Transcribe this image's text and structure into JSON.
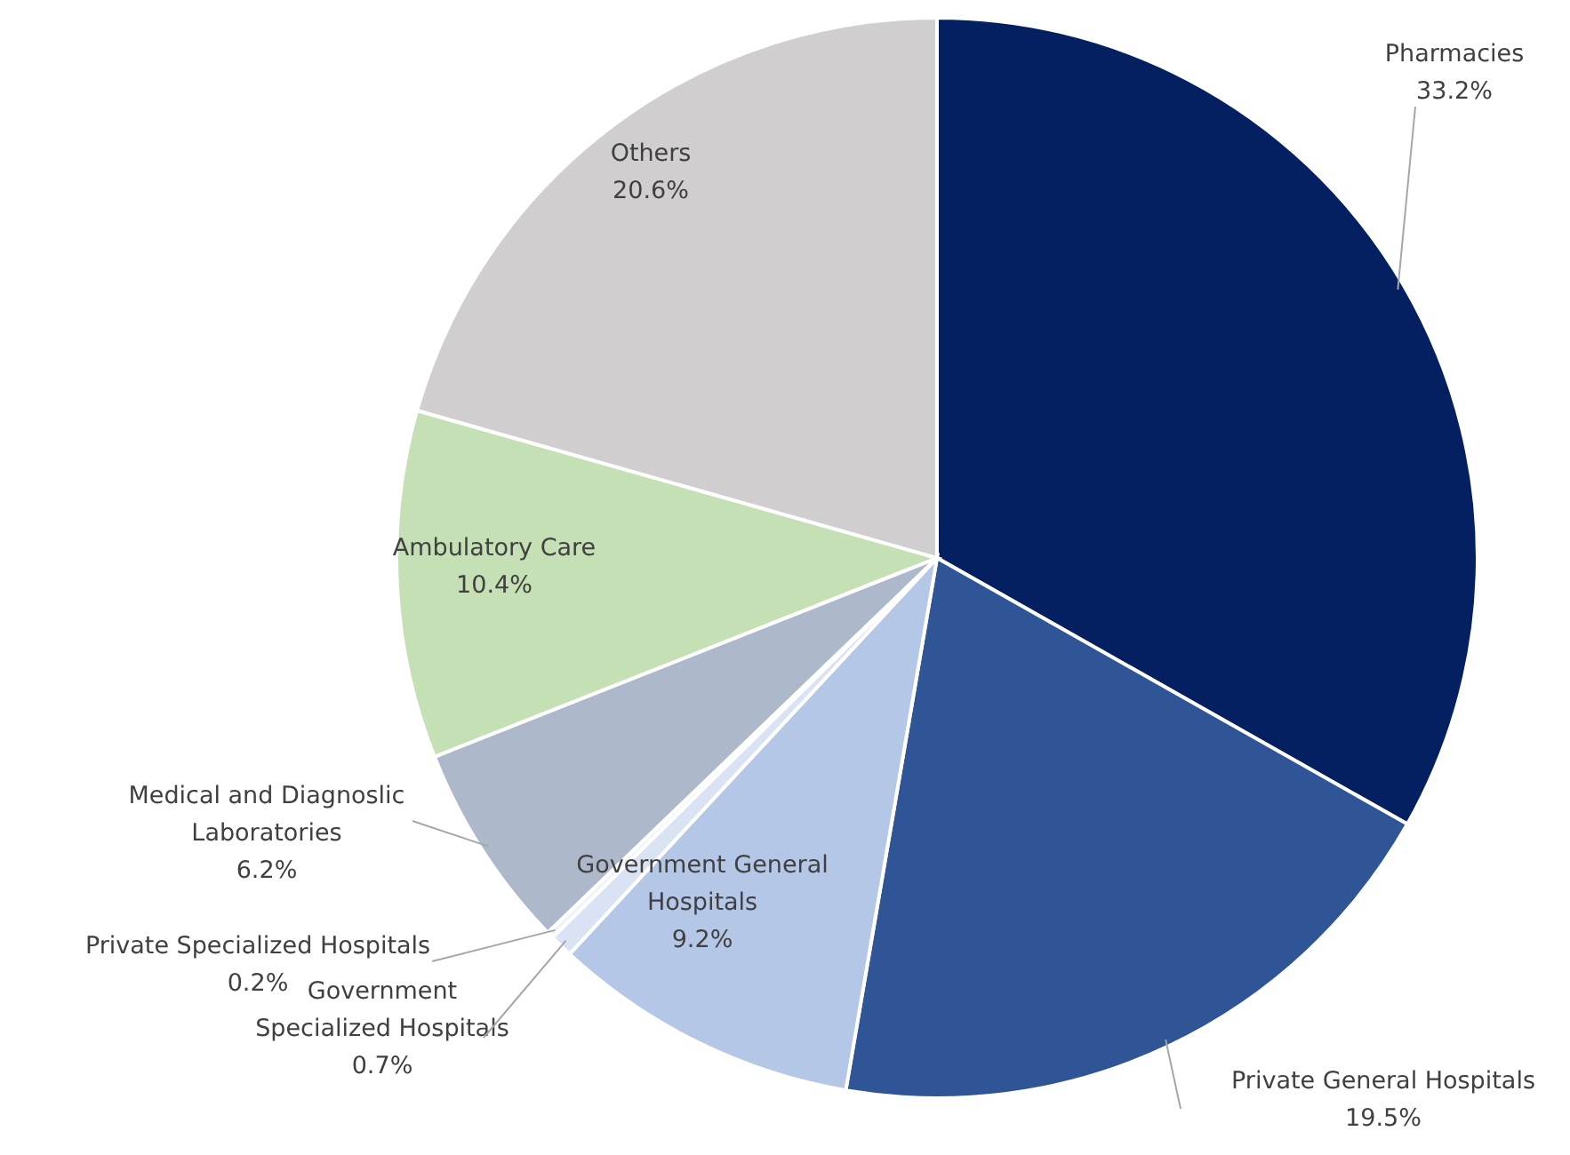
{
  "chart_data": {
    "type": "pie",
    "categories": [
      "Pharmacies",
      "Private General Hospitals",
      "Government General Hospitals",
      "Government Specialized Hospitals",
      "Private Specialized Hospitals",
      "Medical and Diagnoslic Laboratories",
      "Ambulatory Care",
      "Others"
    ],
    "values": [
      33.2,
      19.5,
      9.2,
      0.7,
      0.2,
      6.2,
      10.4,
      20.6
    ],
    "colors": [
      "#042060",
      "#2f5597",
      "#b4c7e7",
      "#dae3f3",
      "#eef2f9",
      "#adb9ca",
      "#c5e0b4",
      "#d0cece"
    ],
    "value_labels": [
      "33.2%",
      "19.5%",
      "9.2%",
      "0.7%",
      "0.2%",
      "6.2%",
      "10.4%",
      "20.6%"
    ]
  }
}
